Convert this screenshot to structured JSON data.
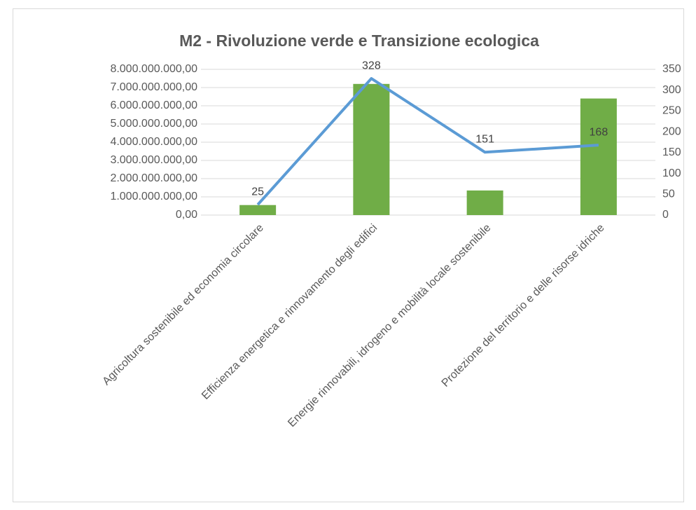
{
  "chart_data": {
    "type": "bar_line",
    "title": "M2 - Rivoluzione verde e Transizione ecologica",
    "categories": [
      "Agricoltura sostenibile ed economia circolare",
      "Efficienza energetica e rinnovamento degli edifici",
      "Energie rinnovabili, idrogeno e mobilità locale sostenibile",
      "Protezione del territorio e delle risorse idriche"
    ],
    "series": [
      {
        "type": "bar",
        "color": "#70ad47",
        "values": [
          550000000,
          7200000000,
          1350000000,
          6400000000
        ]
      },
      {
        "type": "line",
        "color": "#5b9bd5",
        "axis": "y2",
        "values": [
          25,
          328,
          151,
          168
        ]
      }
    ],
    "ylim": [
      0,
      8000000000
    ],
    "yticks": [
      {
        "value": 0,
        "label": "0,00"
      },
      {
        "value": 1000000000,
        "label": "1.000.000.000,00"
      },
      {
        "value": 2000000000,
        "label": "2.000.000.000,00"
      },
      {
        "value": 3000000000,
        "label": "3.000.000.000,00"
      },
      {
        "value": 4000000000,
        "label": "4.000.000.000,00"
      },
      {
        "value": 5000000000,
        "label": "5.000.000.000,00"
      },
      {
        "value": 6000000000,
        "label": "6.000.000.000,00"
      },
      {
        "value": 7000000000,
        "label": "7.000.000.000,00"
      },
      {
        "value": 8000000000,
        "label": "8.000.000.000,00"
      }
    ],
    "y2lim": [
      0,
      350
    ],
    "y2ticks": [
      0,
      50,
      100,
      150,
      200,
      250,
      300,
      350
    ],
    "grid": true
  }
}
